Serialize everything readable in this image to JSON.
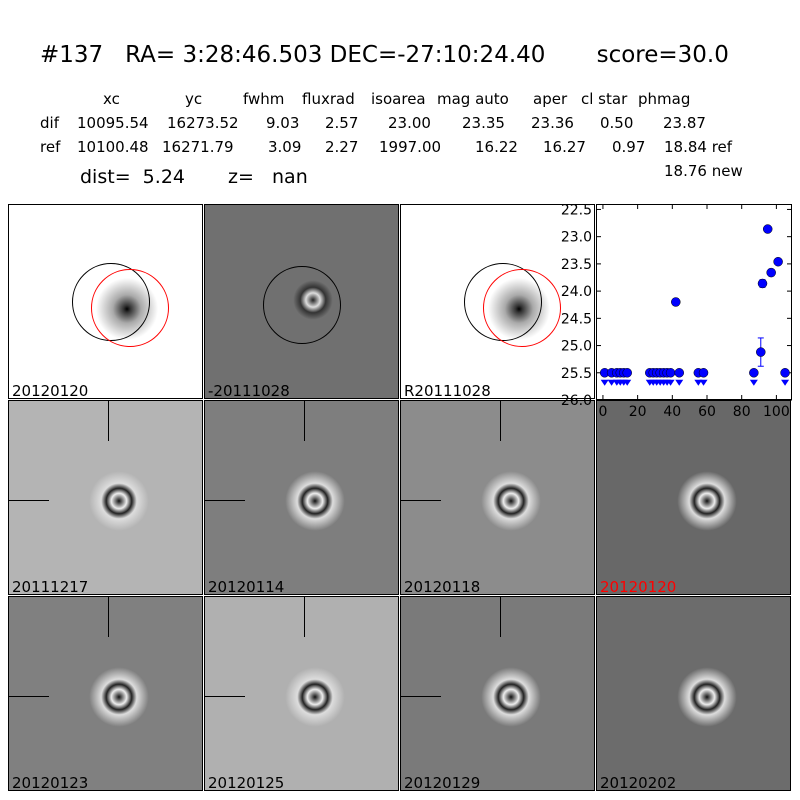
{
  "header": {
    "title": "#137   RA= 3:28:46.503 DEC=-27:10:24.40       score=30.0",
    "columns": [
      "xc",
      "yc",
      "fwhm",
      "fluxrad",
      "isoarea",
      "mag auto",
      "aper",
      "cl star",
      "phmag"
    ],
    "dif": {
      "label": "dif",
      "values": [
        "10095.54",
        "16273.52",
        "9.03",
        "2.57",
        "23.00",
        "23.35",
        "23.36",
        "0.50",
        "23.87"
      ]
    },
    "ref": {
      "label": "ref",
      "values": [
        "10100.48",
        "16271.79",
        "3.09",
        "2.27",
        "1997.00",
        "16.22",
        "16.27",
        "0.97",
        "18.84 ref"
      ]
    },
    "new_mag": "18.76 new",
    "dist": "dist=  5.24",
    "z": "z=   nan"
  },
  "stamps": [
    {
      "label": "20120120",
      "bg": "#ffffff"
    },
    {
      "label": "-20111028",
      "bg": "#707070"
    },
    {
      "label": "R20111028",
      "bg": "#ffffff"
    },
    {
      "label": "20111217",
      "bg": "#b4b4b4"
    },
    {
      "label": "20120114",
      "bg": "#7e7e7e"
    },
    {
      "label": "20120118",
      "bg": "#8c8c8c"
    },
    {
      "label": "20120120",
      "bg": "#686868",
      "label_color": "#ff0000"
    },
    {
      "label": "20120123",
      "bg": "#808080"
    },
    {
      "label": "20120125",
      "bg": "#b0b0b0"
    },
    {
      "label": "20120129",
      "bg": "#7a7a7a"
    },
    {
      "label": "20120202",
      "bg": "#6c6c6c"
    }
  ],
  "chart_data": {
    "type": "scatter",
    "title": "",
    "xlabel": "",
    "ylabel": "",
    "xlim": [
      -4,
      109
    ],
    "ylim": [
      26.0,
      22.4
    ],
    "y_inverted": true,
    "xticks": [
      0,
      20,
      40,
      60,
      80,
      100
    ],
    "yticks": [
      22.5,
      23.0,
      23.5,
      24.0,
      24.5,
      25.0,
      25.5,
      26.0
    ],
    "marker_color": "#0000ff",
    "detections": [
      {
        "x": 42,
        "y": 24.2,
        "err": 0.06
      },
      {
        "x": 91,
        "y": 25.12,
        "err": 0.26
      },
      {
        "x": 92,
        "y": 23.86,
        "err": 0.07
      },
      {
        "x": 95,
        "y": 22.86,
        "err": 0.02
      },
      {
        "x": 97,
        "y": 23.66,
        "err": 0.06
      },
      {
        "x": 101,
        "y": 23.46,
        "err": 0.03
      }
    ],
    "upper_limits": {
      "y": 25.5,
      "x": [
        1,
        5,
        8,
        10,
        12,
        14,
        27,
        29,
        31,
        33,
        35,
        37,
        39,
        44,
        55,
        58,
        87,
        105
      ]
    }
  }
}
